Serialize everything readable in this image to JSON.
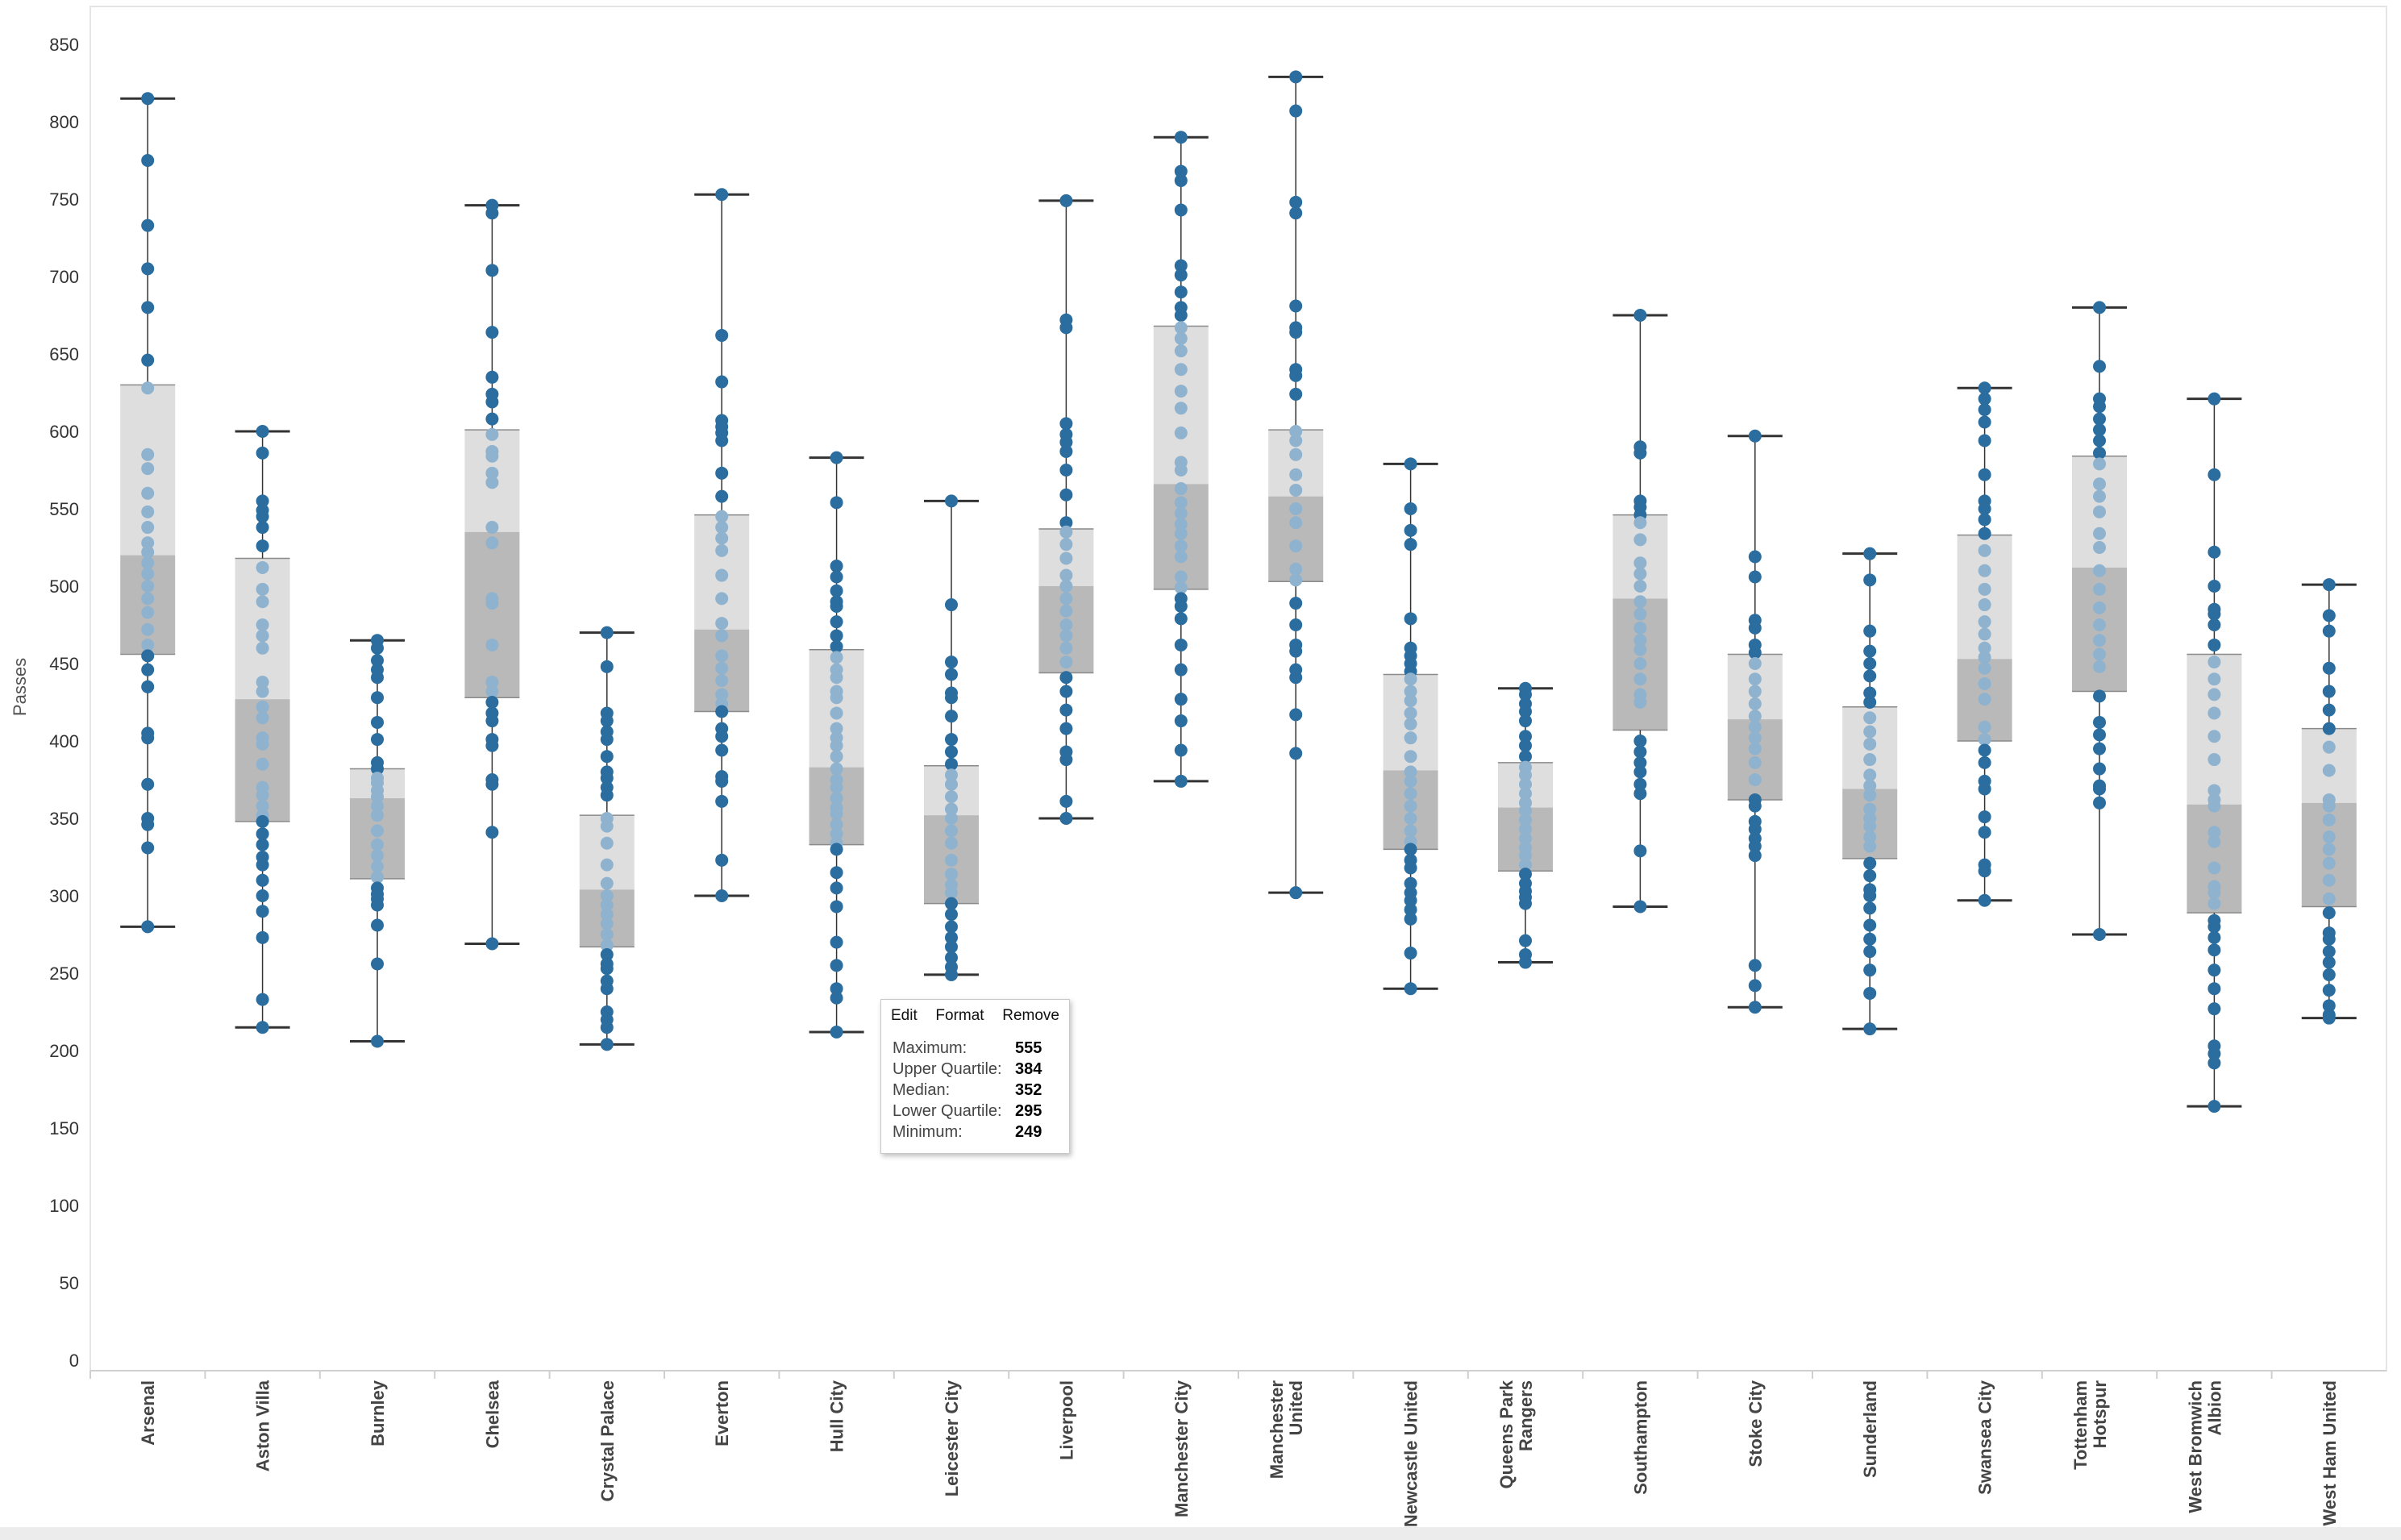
{
  "chart_data": {
    "type": "box",
    "ylabel": "Passes",
    "xlabel": "",
    "ylim": [
      0,
      850
    ],
    "yticks": [
      0,
      50,
      100,
      150,
      200,
      250,
      300,
      350,
      400,
      450,
      500,
      550,
      600,
      650,
      700,
      750,
      800,
      850
    ],
    "grid": false,
    "categories": [
      "Arsenal",
      "Aston Villa",
      "Burnley",
      "Chelsea",
      "Crystal Palace",
      "Everton",
      "Hull City",
      "Leicester City",
      "Liverpool",
      "Manchester City",
      "Manchester United",
      "Newcastle United",
      "Queens Park Rangers",
      "Southampton",
      "Stoke City",
      "Sunderland",
      "Swansea City",
      "Tottenham Hotspur",
      "West Bromwich Albion",
      "West Ham United"
    ],
    "boxes": [
      {
        "min": 280,
        "q1": 456,
        "median": 520,
        "q3": 630,
        "max": 815
      },
      {
        "min": 215,
        "q1": 348,
        "median": 427,
        "q3": 518,
        "max": 600
      },
      {
        "min": 206,
        "q1": 311,
        "median": 363,
        "q3": 382,
        "max": 465
      },
      {
        "min": 269,
        "q1": 428,
        "median": 535,
        "q3": 601,
        "max": 746
      },
      {
        "min": 204,
        "q1": 267,
        "median": 304,
        "q3": 352,
        "max": 470
      },
      {
        "min": 300,
        "q1": 419,
        "median": 472,
        "q3": 546,
        "max": 753
      },
      {
        "min": 212,
        "q1": 333,
        "median": 383,
        "q3": 459,
        "max": 583
      },
      {
        "min": 249,
        "q1": 295,
        "median": 352,
        "q3": 384,
        "max": 555
      },
      {
        "min": 350,
        "q1": 444,
        "median": 500,
        "q3": 537,
        "max": 749
      },
      {
        "min": 374,
        "q1": 498,
        "median": 566,
        "q3": 668,
        "max": 790
      },
      {
        "min": 302,
        "q1": 503,
        "median": 558,
        "q3": 601,
        "max": 829
      },
      {
        "min": 240,
        "q1": 330,
        "median": 381,
        "q3": 443,
        "max": 579
      },
      {
        "min": 257,
        "q1": 316,
        "median": 357,
        "q3": 386,
        "max": 434
      },
      {
        "min": 293,
        "q1": 407,
        "median": 492,
        "q3": 546,
        "max": 675
      },
      {
        "min": 228,
        "q1": 362,
        "median": 414,
        "q3": 456,
        "max": 597
      },
      {
        "min": 214,
        "q1": 324,
        "median": 369,
        "q3": 422,
        "max": 521
      },
      {
        "min": 297,
        "q1": 400,
        "median": 453,
        "q3": 533,
        "max": 628
      },
      {
        "min": 275,
        "q1": 432,
        "median": 512,
        "q3": 584,
        "max": 680
      },
      {
        "min": 164,
        "q1": 289,
        "median": 359,
        "q3": 456,
        "max": 621
      },
      {
        "min": 221,
        "q1": 293,
        "median": 360,
        "q3": 408,
        "max": 501
      }
    ],
    "points": [
      [
        815,
        775,
        733,
        705,
        680,
        646,
        628,
        585,
        576,
        560,
        548,
        538,
        528,
        522,
        515,
        508,
        500,
        492,
        483,
        472,
        462,
        455,
        446,
        435,
        405,
        402,
        372,
        350,
        346,
        331,
        280
      ],
      [
        600,
        586,
        555,
        549,
        545,
        538,
        526,
        512,
        498,
        490,
        475,
        468,
        460,
        438,
        432,
        422,
        415,
        402,
        398,
        385,
        370,
        365,
        358,
        352,
        348,
        340,
        333,
        325,
        320,
        310,
        300,
        290,
        273,
        233,
        215
      ],
      [
        465,
        460,
        452,
        446,
        441,
        428,
        412,
        401,
        386,
        382,
        376,
        373,
        368,
        364,
        358,
        352,
        342,
        333,
        326,
        319,
        312,
        305,
        301,
        298,
        294,
        281,
        256,
        206
      ],
      [
        746,
        741,
        704,
        664,
        635,
        624,
        619,
        608,
        598,
        587,
        584,
        573,
        567,
        538,
        528,
        492,
        489,
        462,
        438,
        432,
        425,
        418,
        413,
        401,
        397,
        375,
        372,
        341,
        269
      ],
      [
        470,
        448,
        418,
        413,
        406,
        401,
        390,
        380,
        376,
        370,
        365,
        350,
        345,
        334,
        320,
        308,
        300,
        294,
        288,
        282,
        275,
        268,
        262,
        256,
        253,
        245,
        240,
        225,
        220,
        215,
        204
      ],
      [
        753,
        662,
        632,
        607,
        603,
        599,
        594,
        573,
        558,
        545,
        538,
        531,
        523,
        507,
        492,
        476,
        468,
        455,
        447,
        439,
        430,
        424,
        419,
        408,
        403,
        394,
        377,
        374,
        361,
        323,
        300
      ],
      [
        583,
        554,
        513,
        506,
        497,
        490,
        487,
        477,
        468,
        461,
        454,
        446,
        441,
        432,
        428,
        418,
        408,
        402,
        397,
        390,
        382,
        375,
        370,
        363,
        357,
        353,
        346,
        340,
        334,
        330,
        315,
        305,
        293,
        270,
        255,
        240,
        234,
        212
      ],
      [
        555,
        488,
        451,
        443,
        431,
        428,
        416,
        401,
        393,
        385,
        378,
        372,
        364,
        356,
        350,
        342,
        334,
        323,
        314,
        307,
        302,
        295,
        288,
        280,
        273,
        267,
        260,
        254,
        249
      ],
      [
        749,
        672,
        667,
        605,
        598,
        593,
        587,
        575,
        559,
        541,
        535,
        527,
        518,
        507,
        500,
        492,
        484,
        475,
        468,
        460,
        451,
        441,
        432,
        420,
        408,
        393,
        388,
        361,
        350
      ],
      [
        790,
        768,
        762,
        743,
        707,
        701,
        690,
        680,
        675,
        667,
        660,
        652,
        640,
        626,
        615,
        599,
        580,
        575,
        563,
        554,
        547,
        540,
        534,
        526,
        519,
        506,
        499,
        492,
        487,
        479,
        462,
        446,
        427,
        413,
        394,
        374
      ],
      [
        829,
        807,
        748,
        741,
        681,
        667,
        664,
        640,
        636,
        624,
        600,
        594,
        585,
        572,
        562,
        550,
        541,
        526,
        511,
        504,
        489,
        475,
        462,
        458,
        446,
        441,
        417,
        392,
        302
      ],
      [
        579,
        550,
        536,
        527,
        479,
        460,
        455,
        450,
        445,
        440,
        432,
        426,
        418,
        411,
        402,
        390,
        380,
        374,
        366,
        358,
        350,
        342,
        335,
        330,
        323,
        318,
        308,
        302,
        297,
        291,
        285,
        263,
        240
      ],
      [
        434,
        430,
        424,
        419,
        413,
        403,
        397,
        390,
        383,
        378,
        372,
        366,
        360,
        355,
        349,
        343,
        337,
        331,
        326,
        320,
        314,
        308,
        303,
        299,
        295,
        271,
        262,
        257
      ],
      [
        675,
        590,
        586,
        555,
        551,
        546,
        541,
        530,
        515,
        508,
        500,
        490,
        482,
        473,
        465,
        459,
        450,
        440,
        430,
        425,
        400,
        393,
        386,
        380,
        372,
        366,
        329,
        293
      ],
      [
        597,
        519,
        506,
        478,
        473,
        462,
        457,
        450,
        440,
        432,
        424,
        416,
        409,
        402,
        395,
        386,
        375,
        362,
        358,
        348,
        343,
        337,
        332,
        326,
        255,
        242,
        228
      ],
      [
        521,
        504,
        471,
        458,
        450,
        442,
        431,
        425,
        415,
        406,
        398,
        388,
        378,
        371,
        365,
        356,
        350,
        345,
        338,
        332,
        321,
        313,
        304,
        300,
        292,
        281,
        272,
        264,
        252,
        237,
        214
      ],
      [
        628,
        621,
        614,
        606,
        594,
        572,
        555,
        550,
        543,
        534,
        523,
        510,
        498,
        488,
        477,
        469,
        460,
        454,
        447,
        437,
        427,
        409,
        401,
        394,
        386,
        374,
        369,
        351,
        341,
        320,
        316,
        297
      ],
      [
        680,
        642,
        621,
        616,
        608,
        601,
        594,
        586,
        579,
        566,
        558,
        548,
        534,
        525,
        510,
        498,
        486,
        475,
        465,
        456,
        448,
        429,
        412,
        404,
        395,
        382,
        371,
        369,
        360,
        275
      ],
      [
        621,
        572,
        522,
        500,
        485,
        482,
        475,
        462,
        451,
        440,
        430,
        418,
        403,
        388,
        368,
        362,
        358,
        341,
        335,
        318,
        306,
        302,
        295,
        284,
        280,
        273,
        265,
        252,
        240,
        227,
        203,
        198,
        192,
        164
      ],
      [
        501,
        481,
        471,
        447,
        432,
        420,
        408,
        396,
        381,
        362,
        358,
        349,
        338,
        330,
        321,
        310,
        298,
        289,
        276,
        272,
        264,
        257,
        249,
        239,
        229,
        223,
        221
      ]
    ],
    "colors": {
      "point": "#2a6d9e",
      "point_in_box": "#8fb3cf",
      "box_upper": "#dedede",
      "box_lower": "#b9b9b9",
      "whisker": "#333333"
    }
  },
  "tooltip": {
    "menu": {
      "edit": "Edit",
      "format": "Format",
      "remove": "Remove"
    },
    "rows": [
      {
        "label": "Maximum:",
        "value": "555"
      },
      {
        "label": "Upper Quartile:",
        "value": "384"
      },
      {
        "label": "Median:",
        "value": "352"
      },
      {
        "label": "Lower Quartile:",
        "value": "295"
      },
      {
        "label": "Minimum:",
        "value": "249"
      }
    ]
  }
}
